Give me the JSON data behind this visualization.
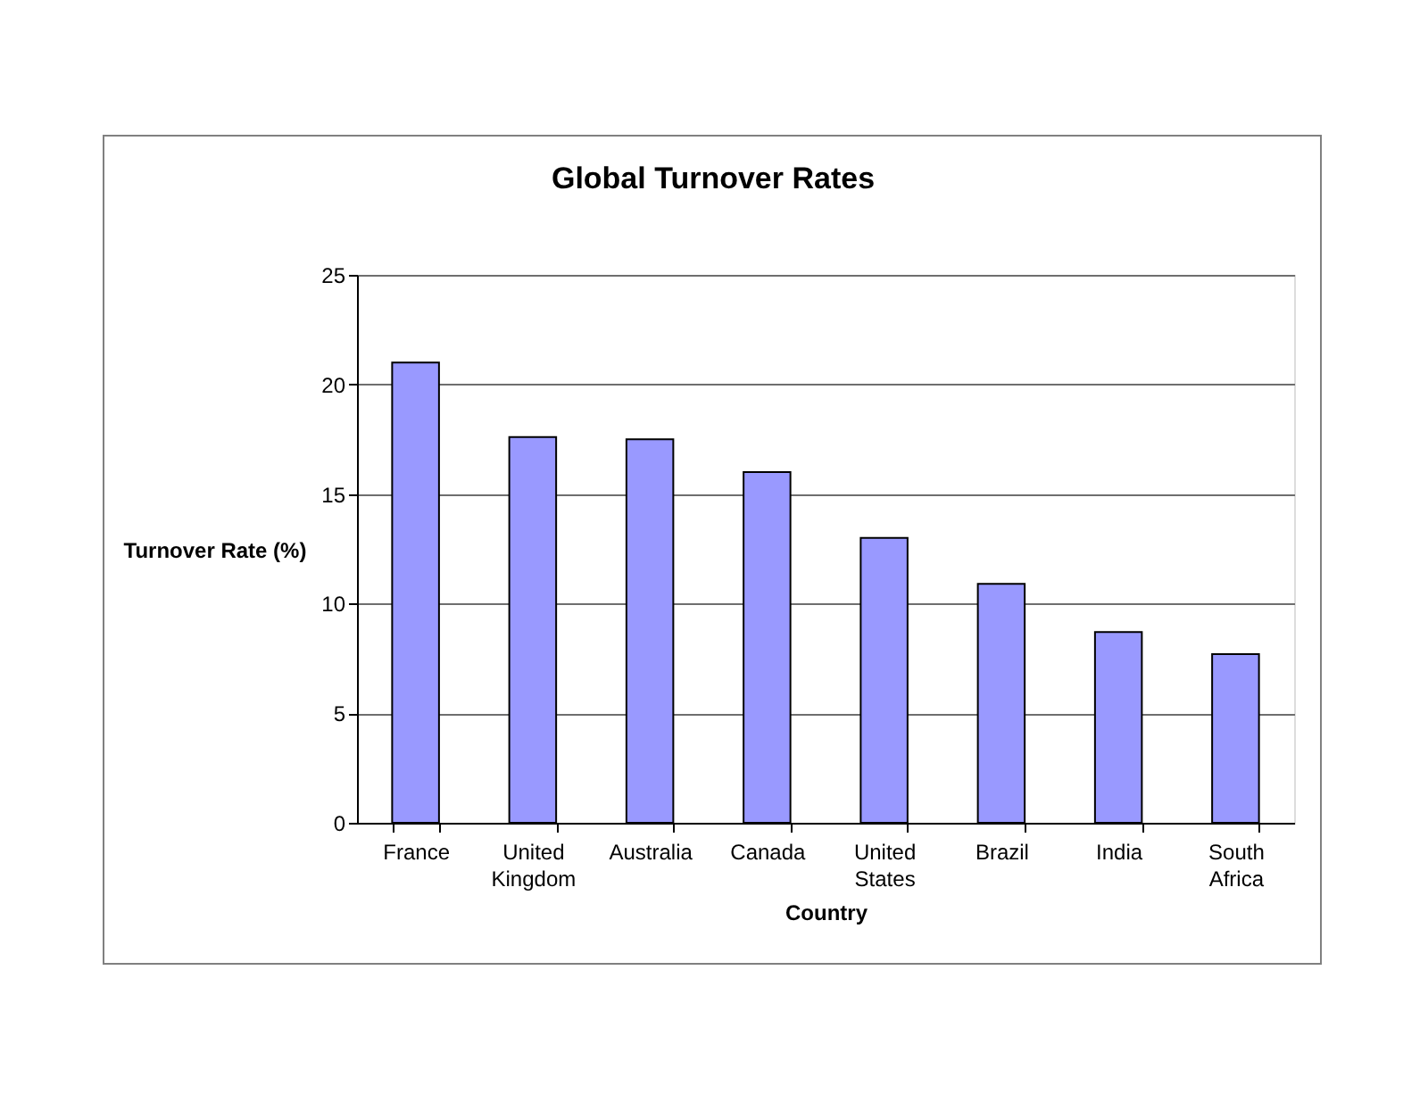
{
  "chart_data": {
    "type": "bar",
    "title": "Global Turnover Rates",
    "xlabel": "Country",
    "ylabel": "Turnover Rate (%)",
    "categories": [
      "France",
      "United Kingdom",
      "Australia",
      "Canada",
      "United States",
      "Brazil",
      "India",
      "South Africa"
    ],
    "values": [
      21,
      17.6,
      17.5,
      16,
      13,
      10.9,
      8.7,
      7.7
    ],
    "color": "#9999ff",
    "ylim": [
      0,
      25
    ],
    "yticks": [
      0,
      5,
      10,
      15,
      20,
      25
    ],
    "grid": "y"
  }
}
